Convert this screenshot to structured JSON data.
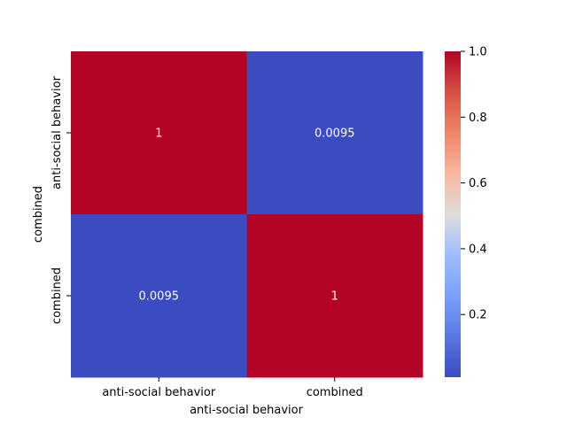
{
  "chart_data": {
    "type": "heatmap",
    "title": "",
    "xlabel": "anti-social behavior",
    "ylabel": "combined",
    "x_categories": [
      "anti-social behavior",
      "combined"
    ],
    "y_categories": [
      "anti-social behavior",
      "combined"
    ],
    "values": [
      [
        1,
        0.0095
      ],
      [
        0.0095,
        1
      ]
    ],
    "cell_labels": [
      [
        "1",
        "0.0095"
      ],
      [
        "0.0095",
        "1"
      ]
    ],
    "colormap": "coolwarm",
    "colorbar": {
      "range": [
        0.0095,
        1.0
      ],
      "ticks": [
        0.2,
        0.4,
        0.6,
        0.8,
        1.0
      ],
      "tick_labels": [
        "0.2",
        "0.4",
        "0.6",
        "0.8",
        "1.0"
      ]
    },
    "colors": {
      "high": "#b40426",
      "low": "#3b4cc0"
    },
    "grid": false
  }
}
